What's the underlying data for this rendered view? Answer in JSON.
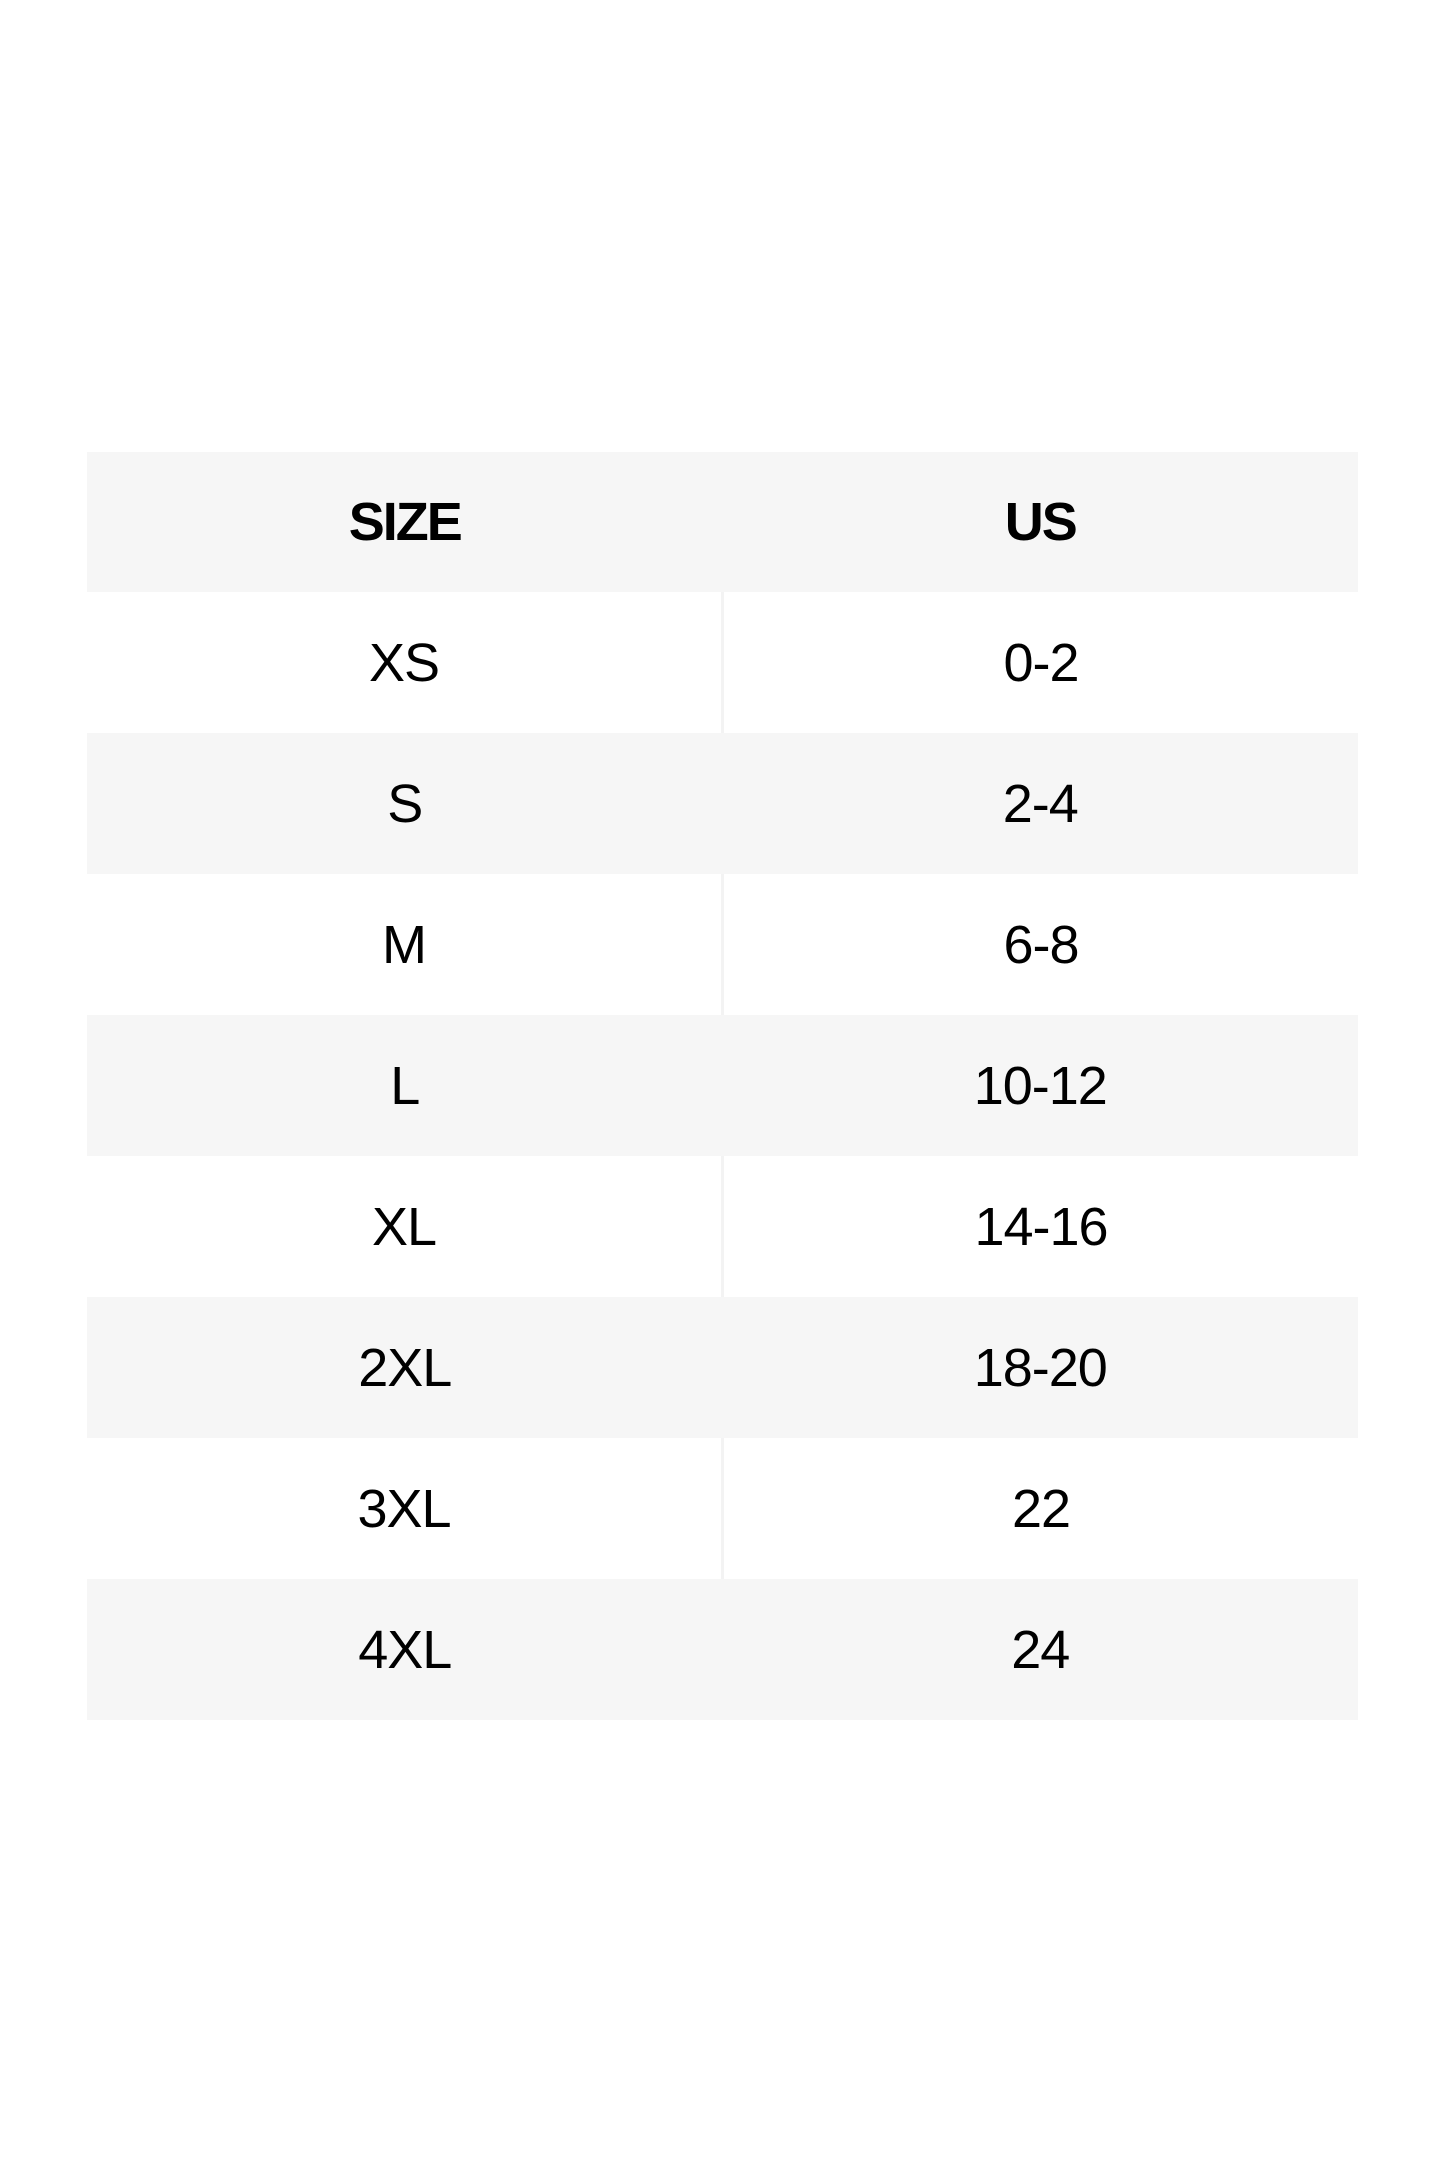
{
  "table": {
    "headers": [
      "SIZE",
      "US"
    ],
    "rows": [
      [
        "XS",
        "0-2"
      ],
      [
        "S",
        "2-4"
      ],
      [
        "M",
        "6-8"
      ],
      [
        "L",
        "10-12"
      ],
      [
        "XL",
        "14-16"
      ],
      [
        "2XL",
        "18-20"
      ],
      [
        "3XL",
        "22"
      ],
      [
        "4XL",
        "24"
      ]
    ]
  },
  "colors": {
    "header_bg": "#f6f6f6",
    "stripe_bg": "#f6f6f6",
    "text": "#000000"
  }
}
